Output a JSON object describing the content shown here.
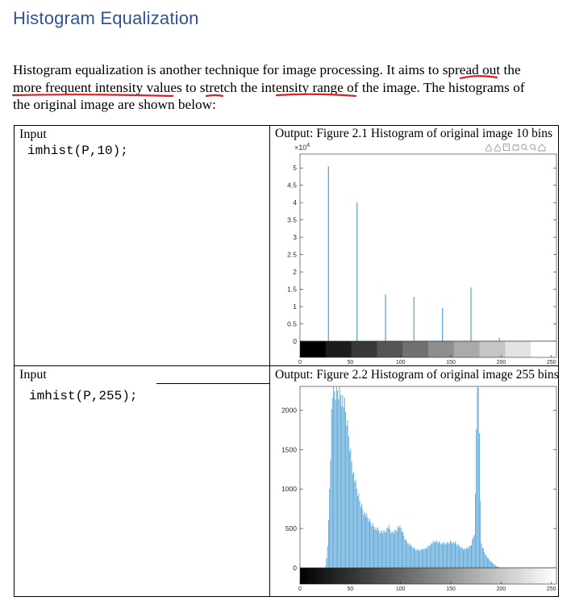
{
  "document": {
    "heading": "Histogram Equalization",
    "paragraph_lines": [
      "Histogram equalization is another technique for image processing. It aims to spread out the",
      "more frequent intensity values to stretch the intensity range of the image. The histograms of",
      "the original image are shown below:"
    ],
    "annotation_color": "#e02020"
  },
  "table": {
    "rows": [
      {
        "input_label": "Input",
        "code": "imhist(P,10);",
        "output_label": "Output: Figure 2.1 Histogram of original image 10 bins"
      },
      {
        "input_label": "Input",
        "code": "imhist(P,255);",
        "output_label": "Output: Figure 2.2 Histogram of original image 255 bins"
      }
    ]
  },
  "chart_data": [
    {
      "type": "bar",
      "title": "",
      "bins": 10,
      "exponent_label": "×10",
      "exponent_power": "4",
      "x": [
        0,
        28.3,
        56.7,
        85,
        113.3,
        141.7,
        170,
        198.3,
        226.7,
        255
      ],
      "values": [
        0,
        5.05,
        4.0,
        1.35,
        1.28,
        0.95,
        1.55,
        0.1,
        0,
        0
      ],
      "xlim": [
        0,
        255
      ],
      "ylim": [
        0,
        5.4
      ],
      "yticks": [
        0,
        0.5,
        1,
        1.5,
        2,
        2.5,
        3,
        3.5,
        4,
        4.5,
        5
      ],
      "xticks": [
        0,
        50,
        100,
        150,
        200,
        250
      ],
      "bar_color": "#5fa8d8",
      "toolbar_icons": [
        "brush-icon",
        "datatip-icon",
        "save-icon",
        "pan-icon",
        "zoom-in-icon",
        "zoom-out-icon",
        "home-icon"
      ]
    },
    {
      "type": "bar",
      "title": "",
      "bins": 255,
      "xlim": [
        0,
        255
      ],
      "ylim": [
        0,
        2300
      ],
      "yticks": [
        0,
        500,
        1000,
        1500,
        2000
      ],
      "xticks": [
        0,
        50,
        100,
        150,
        200,
        250
      ],
      "bar_color": "#5fa8d8",
      "envelope": [
        [
          0,
          0
        ],
        [
          25,
          0
        ],
        [
          26,
          40
        ],
        [
          28,
          400
        ],
        [
          30,
          1300
        ],
        [
          32,
          2350
        ],
        [
          35,
          2350
        ],
        [
          38,
          2400
        ],
        [
          41,
          2350
        ],
        [
          44,
          2200
        ],
        [
          47,
          1950
        ],
        [
          50,
          1600
        ],
        [
          53,
          1300
        ],
        [
          56,
          1080
        ],
        [
          60,
          880
        ],
        [
          65,
          720
        ],
        [
          70,
          620
        ],
        [
          75,
          540
        ],
        [
          80,
          480
        ],
        [
          85,
          500
        ],
        [
          88,
          560
        ],
        [
          91,
          470
        ],
        [
          95,
          500
        ],
        [
          98,
          560
        ],
        [
          101,
          520
        ],
        [
          105,
          380
        ],
        [
          110,
          300
        ],
        [
          115,
          250
        ],
        [
          120,
          240
        ],
        [
          125,
          260
        ],
        [
          130,
          320
        ],
        [
          135,
          360
        ],
        [
          140,
          340
        ],
        [
          145,
          320
        ],
        [
          150,
          360
        ],
        [
          155,
          330
        ],
        [
          160,
          280
        ],
        [
          165,
          250
        ],
        [
          170,
          300
        ],
        [
          174,
          500
        ],
        [
          176,
          2400
        ],
        [
          178,
          2400
        ],
        [
          180,
          350
        ],
        [
          183,
          230
        ],
        [
          186,
          150
        ],
        [
          189,
          100
        ],
        [
          192,
          60
        ],
        [
          195,
          30
        ],
        [
          198,
          10
        ],
        [
          201,
          0
        ],
        [
          255,
          0
        ]
      ]
    }
  ]
}
